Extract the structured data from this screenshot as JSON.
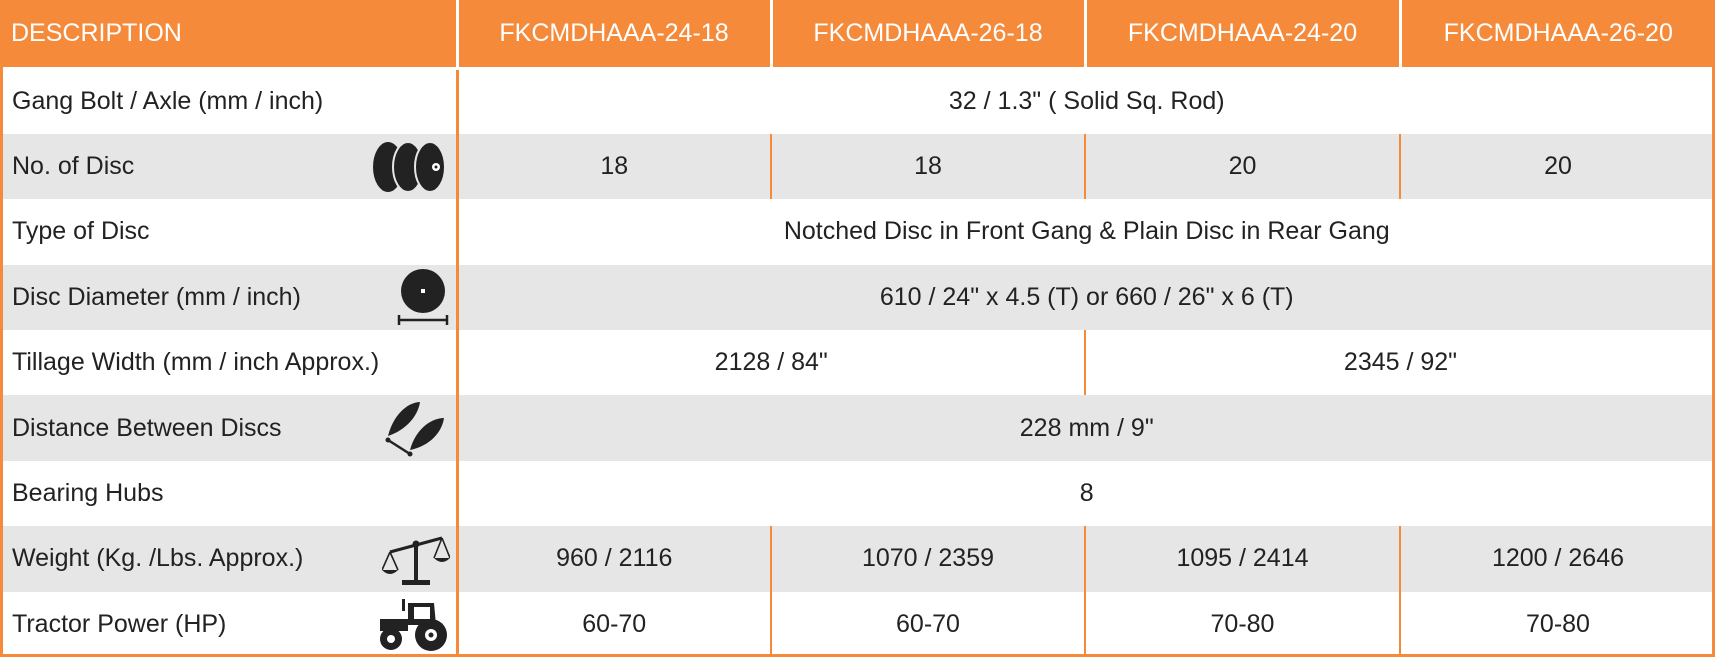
{
  "header": {
    "description": "DESCRIPTION",
    "models": [
      "FKCMDHAAA-24-18",
      "FKCMDHAAA-26-18",
      "FKCMDHAAA-24-20",
      "FKCMDHAAA-26-20"
    ]
  },
  "rows": [
    {
      "label": "Gang Bolt / Axle (mm / inch)",
      "icon": null,
      "cells": [
        "32 / 1.3\" ( Solid Sq. Rod)"
      ]
    },
    {
      "label": "No. of Disc",
      "icon": "discs-icon",
      "cells": [
        "18",
        "18",
        "20",
        "20"
      ]
    },
    {
      "label": "Type of Disc",
      "icon": null,
      "cells": [
        "Notched Disc in Front Gang & Plain Disc in Rear Gang"
      ]
    },
    {
      "label": "Disc Diameter (mm / inch)",
      "icon": "disc-diameter-icon",
      "cells": [
        "610 / 24\" x 4.5 (T) or 660 / 26\" x 6 (T)"
      ]
    },
    {
      "label": "Tillage Width (mm / inch Approx.)",
      "icon": null,
      "cells": [
        "2128 / 84\"",
        "2345 / 92\""
      ]
    },
    {
      "label": "Distance Between Discs",
      "icon": "disc-spacing-icon",
      "cells": [
        "228 mm / 9\""
      ]
    },
    {
      "label": "Bearing Hubs",
      "icon": null,
      "cells": [
        "8"
      ]
    },
    {
      "label": "Weight (Kg. /Lbs. Approx.)",
      "icon": "scale-icon",
      "cells": [
        "960 / 2116",
        "1070 / 2359",
        "1095 / 2414",
        "1200 / 2646"
      ]
    },
    {
      "label": "Tractor Power (HP)",
      "icon": "tractor-icon",
      "cells": [
        "60-70",
        "60-70",
        "70-80",
        "70-80"
      ]
    }
  ],
  "colors": {
    "accent": "#f58a3b",
    "header_text": "#ffffff",
    "shaded_row": "#e6e6e6",
    "text": "#222222"
  }
}
